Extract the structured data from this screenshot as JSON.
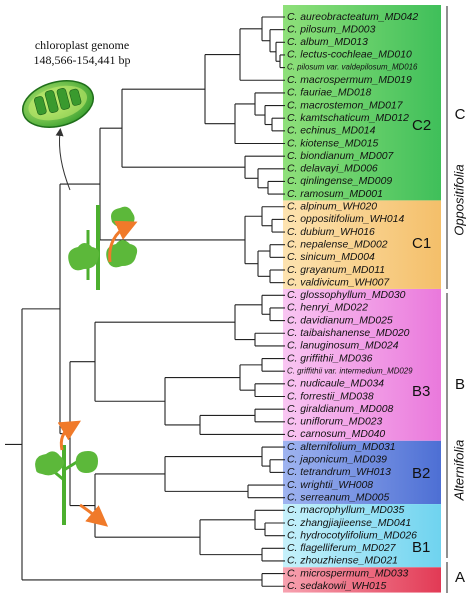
{
  "header": {
    "title": "chloroplast genome",
    "subtitle": "148,566-154,441 bp"
  },
  "leaves": [
    "C. aureobracteatum_MD042",
    "C. pilosum_MD003",
    "C. album_MD013",
    "C. lectus-cochleae_MD010",
    "C. pilosum var. valdepilosum_MD016",
    "C. macrospermum_MD019",
    "C. fauriae_MD018",
    "C. macrostemon_MD017",
    "C. kamtschaticum_MD012",
    "C. echinus_MD014",
    "C. kiotense_MD015",
    "C. biondianum_MD007",
    "C. delavayi_MD006",
    "C. qinlingense_MD009",
    "C. ramosum_MD001",
    "C. alpinum_WH020",
    "C. oppositifolium_WH014",
    "C. dubium_WH016",
    "C. nepalense_MD002",
    "C. sinicum_MD004",
    "C. grayanum_MD011",
    "C. valdivicum_WH007",
    "C. glossophyllum_MD030",
    "C. henryi_MD022",
    "C. davidianum_MD025",
    "C. taibaishanense_MD020",
    "C. lanuginosum_MD024",
    "C. griffithii_MD036",
    "C. griffithii var. intermedium_MD029",
    "C. nudicaule_MD034",
    "C. forrestii_MD038",
    "C. giraldianum_MD008",
    "C. uniflorum_MD023",
    "C. carnosum_MD040",
    "C. alternifolium_MD031",
    "C. japonicum_MD039",
    "C. tetrandrum_WH013",
    "C. wrightii_WH008",
    "C. serreanum_MD005",
    "C. macrophyllum_MD035",
    "C. zhangjiajieense_MD041",
    "C. hydrocotylifolium_MD026",
    "C. flagelliferum_MD027",
    "C. zhouzhiense_MD021",
    "C. microspermum_MD033",
    "C. sedakowii_WH015"
  ],
  "clades": [
    "C2",
    "C1",
    "B3",
    "B2",
    "B1"
  ],
  "major": [
    {
      "letter": "C",
      "name": "Oppositifolia"
    },
    {
      "letter": "B",
      "name": "Alternifolia"
    },
    {
      "letter": "A"
    }
  ]
}
